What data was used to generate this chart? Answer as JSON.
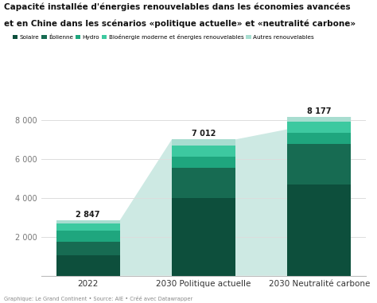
{
  "title_line1": "Capacité installée d'énergies renouvelables dans les économies avancées",
  "title_line2": "et en Chine dans les scénarios «politique actuelle» et «neutralité carbone»",
  "categories": [
    "2022",
    "2030 Politique actuelle",
    "2030 Neutralité carbone"
  ],
  "totals": [
    2847,
    7012,
    8177
  ],
  "segments": {
    "Solaire": [
      1050,
      3980,
      4700
    ],
    "Éolienne": [
      700,
      1580,
      2080
    ],
    "Hydro": [
      580,
      580,
      580
    ],
    "Bioénergie moderne et énergies renouvelables": [
      350,
      580,
      580
    ],
    "Autres renouvelables": [
      167,
      292,
      237
    ]
  },
  "colors": {
    "Solaire": "#0d4f3c",
    "Éolienne": "#176b52",
    "Hydro": "#1fa67e",
    "Bioénergie moderne et énergies renouvelables": "#3dc9a0",
    "Autres renouvelables": "#a8ddd0"
  },
  "shadow_color": "#cde9e3",
  "ylim": [
    0,
    9200
  ],
  "ytick_vals": [
    2000,
    4000,
    6000,
    8000
  ],
  "ytick_labels": [
    "2 000",
    "4 000",
    "6 000",
    "8 000"
  ],
  "background_color": "#ffffff",
  "footer": "Graphique: Le Grand Continent • Source: AIE • Créé avec Datawrapper",
  "bar_width": 0.55,
  "total_labels": [
    "2 847",
    "7 012",
    "8 177"
  ],
  "grid_color": "#dddddd",
  "spine_color": "#bbbbbb"
}
